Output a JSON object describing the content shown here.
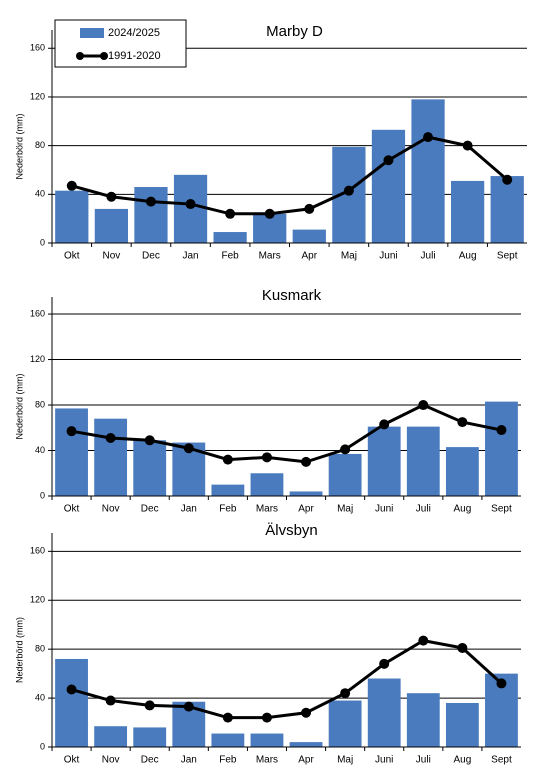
{
  "chart_data": [
    {
      "type": "bar",
      "title": "Marby D",
      "y_label": "Nederbörd (mm)",
      "categories": [
        "Okt",
        "Nov",
        "Dec",
        "Jan",
        "Feb",
        "Mars",
        "Apr",
        "Maj",
        "Juni",
        "Juli",
        "Aug",
        "Sept"
      ],
      "series": [
        {
          "name": "2024/2025",
          "type": "bar",
          "color": "#4a7bbf",
          "values": [
            43,
            28,
            46,
            56,
            9,
            24,
            11,
            79,
            93,
            118,
            51,
            55
          ]
        },
        {
          "name": "1991-2020",
          "type": "line",
          "color": "#000000",
          "values": [
            47,
            38,
            34,
            32,
            24,
            24,
            28,
            43,
            68,
            87,
            80,
            52
          ]
        }
      ],
      "ylim": [
        0,
        175
      ],
      "yticks": [
        0,
        40,
        80,
        120,
        160
      ],
      "grid": true,
      "legend": "upper left"
    },
    {
      "type": "bar",
      "title": "Kusmark",
      "y_label": "Nederbörd (mm)",
      "categories": [
        "Okt",
        "Nov",
        "Dec",
        "Jan",
        "Feb",
        "Mars",
        "Apr",
        "Maj",
        "Juni",
        "Juli",
        "Aug",
        "Sept"
      ],
      "series": [
        {
          "type": "bar",
          "color": "#4a7bbf",
          "values": [
            77,
            68,
            49,
            47,
            10,
            20,
            4,
            37,
            61,
            61,
            43,
            83
          ]
        },
        {
          "type": "line",
          "color": "#000000",
          "values": [
            57,
            51,
            49,
            42,
            32,
            34,
            30,
            41,
            63,
            80,
            65,
            58
          ]
        }
      ],
      "ylim": [
        0,
        175
      ],
      "yticks": [
        0,
        40,
        80,
        120,
        160
      ],
      "grid": true
    },
    {
      "type": "bar",
      "title": "Älvsbyn",
      "y_label": "Nederbörd (mm)",
      "categories": [
        "Okt",
        "Nov",
        "Dec",
        "Jan",
        "Feb",
        "Mars",
        "Apr",
        "Maj",
        "Juni",
        "Juli",
        "Aug",
        "Sept"
      ],
      "series": [
        {
          "type": "bar",
          "color": "#4a7bbf",
          "values": [
            72,
            17,
            16,
            37,
            11,
            11,
            4,
            38,
            56,
            44,
            36,
            60
          ]
        },
        {
          "type": "line",
          "color": "#000000",
          "values": [
            47,
            38,
            34,
            33,
            24,
            24,
            28,
            44,
            68,
            87,
            81,
            52
          ]
        }
      ],
      "ylim": [
        0,
        175
      ],
      "yticks": [
        0,
        40,
        80,
        120,
        160
      ],
      "grid": true
    }
  ]
}
